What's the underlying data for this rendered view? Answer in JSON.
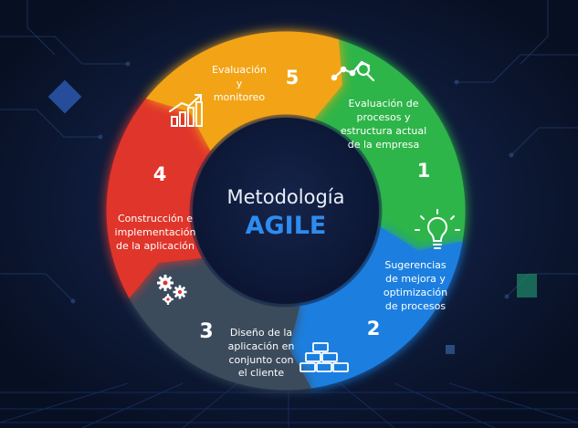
{
  "center": {
    "line1": "Metodología",
    "line2": "AGILE"
  },
  "stages": [
    {
      "number": "1",
      "lines": [
        "Evaluación de",
        "procesos y",
        "estructura actual",
        "de la empresa"
      ],
      "icon": "chart-magnifier-icon",
      "color": "#2fb54a"
    },
    {
      "number": "2",
      "lines": [
        "Sugerencias",
        "de mejora y",
        "optimización",
        "de procesos"
      ],
      "icon": "lightbulb-icon",
      "color": "#1e7fe0"
    },
    {
      "number": "3",
      "lines": [
        "Diseño de la",
        "aplicación en",
        "conjunto con",
        "el cliente"
      ],
      "icon": "bricks-icon",
      "color": "#3a4c5c"
    },
    {
      "number": "4",
      "lines": [
        "Construcción e",
        "implementación",
        "de la aplicación"
      ],
      "icon": "gears-icon",
      "color": "#e0342b"
    },
    {
      "number": "5",
      "lines": [
        "Evaluación",
        "y",
        "monitoreo"
      ],
      "icon": "bar-chart-icon",
      "color": "#f2a418"
    }
  ]
}
